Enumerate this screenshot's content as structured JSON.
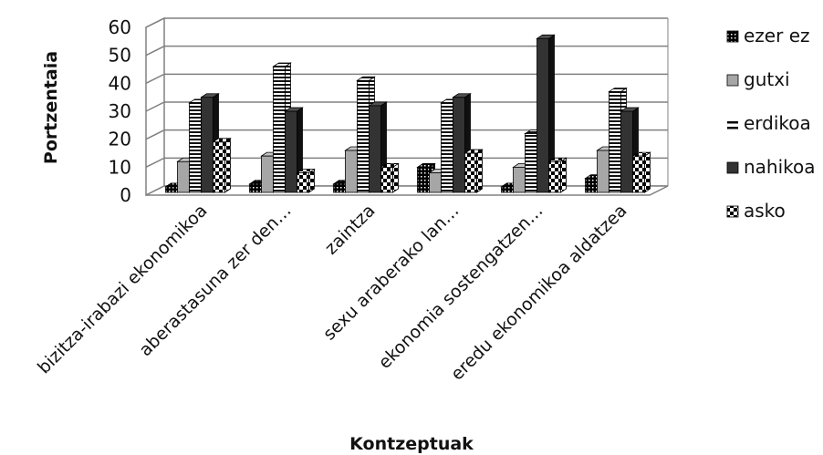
{
  "chart_data": {
    "type": "bar",
    "style": "3d-clustered-column",
    "title": "",
    "xlabel": "Kontzeptuak",
    "ylabel": "Portzentaia",
    "ylim": [
      0,
      60
    ],
    "yticks": [
      0,
      10,
      20,
      30,
      40,
      50,
      60
    ],
    "grid": true,
    "legend_position": "right",
    "categories": [
      "bizitza-irabazi ekonomikoa",
      "aberastasuna zer den…",
      "zaintza",
      "sexu araberako lan…",
      "ekonomia sostengatzen…",
      "eredu ekonomikoa aldatzea"
    ],
    "series": [
      {
        "name": "ezer ez",
        "pattern": "black-dots",
        "values": [
          2,
          3,
          3,
          9,
          2,
          5
        ]
      },
      {
        "name": "gutxi",
        "pattern": "solid-gray",
        "values": [
          11,
          13,
          15,
          7,
          9,
          15
        ]
      },
      {
        "name": "erdikoa",
        "pattern": "horizontal-stripes",
        "values": [
          32,
          45,
          40,
          32,
          21,
          36
        ]
      },
      {
        "name": "nahikoa",
        "pattern": "solid-dark",
        "values": [
          34,
          29,
          31,
          34,
          55,
          29
        ]
      },
      {
        "name": "asko",
        "pattern": "checker",
        "values": [
          18,
          7,
          9,
          14,
          11,
          13
        ]
      }
    ],
    "colors": {
      "gridline": "#808080",
      "gray_bar": "#a6a6a6",
      "dark_bar": "#333333",
      "black": "#000000"
    }
  }
}
